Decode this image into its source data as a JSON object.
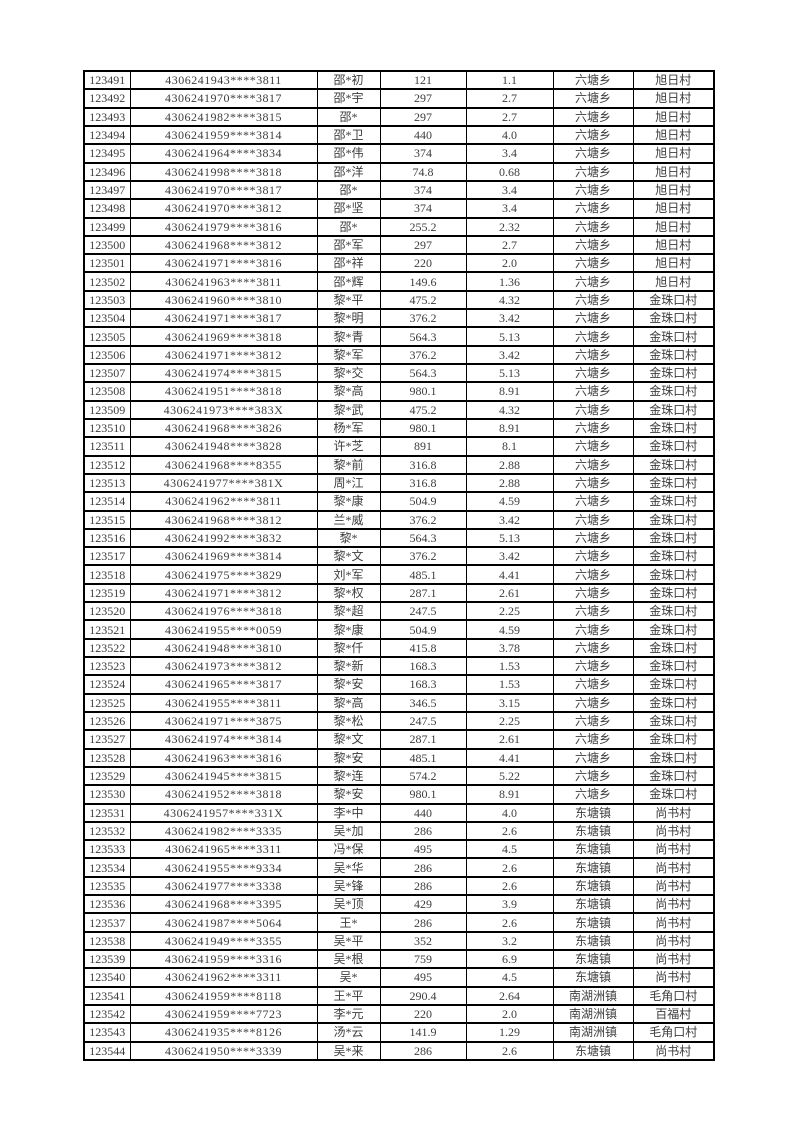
{
  "page": {
    "background_color": "#ffffff",
    "text_color": "#3d3d3d",
    "border_color": "#000000"
  },
  "table": {
    "rows": [
      [
        "123491",
        "4306241943****3811",
        "邵*初",
        "121",
        "1.1",
        "六塘乡",
        "旭日村"
      ],
      [
        "123492",
        "4306241970****3817",
        "邵*宇",
        "297",
        "2.7",
        "六塘乡",
        "旭日村"
      ],
      [
        "123493",
        "4306241982****3815",
        "邵*",
        "297",
        "2.7",
        "六塘乡",
        "旭日村"
      ],
      [
        "123494",
        "4306241959****3814",
        "邵*卫",
        "440",
        "4.0",
        "六塘乡",
        "旭日村"
      ],
      [
        "123495",
        "4306241964****3834",
        "邵*伟",
        "374",
        "3.4",
        "六塘乡",
        "旭日村"
      ],
      [
        "123496",
        "4306241998****3818",
        "邵*洋",
        "74.8",
        "0.68",
        "六塘乡",
        "旭日村"
      ],
      [
        "123497",
        "4306241970****3817",
        "邵*",
        "374",
        "3.4",
        "六塘乡",
        "旭日村"
      ],
      [
        "123498",
        "4306241970****3812",
        "邵*坚",
        "374",
        "3.4",
        "六塘乡",
        "旭日村"
      ],
      [
        "123499",
        "4306241979****3816",
        "邵*",
        "255.2",
        "2.32",
        "六塘乡",
        "旭日村"
      ],
      [
        "123500",
        "4306241968****3812",
        "邵*军",
        "297",
        "2.7",
        "六塘乡",
        "旭日村"
      ],
      [
        "123501",
        "4306241971****3816",
        "邵*祥",
        "220",
        "2.0",
        "六塘乡",
        "旭日村"
      ],
      [
        "123502",
        "4306241963****3811",
        "邵*辉",
        "149.6",
        "1.36",
        "六塘乡",
        "旭日村"
      ],
      [
        "123503",
        "4306241960****3810",
        "黎*平",
        "475.2",
        "4.32",
        "六塘乡",
        "金珠口村"
      ],
      [
        "123504",
        "4306241971****3817",
        "黎*明",
        "376.2",
        "3.42",
        "六塘乡",
        "金珠口村"
      ],
      [
        "123505",
        "4306241969****3818",
        "黎*青",
        "564.3",
        "5.13",
        "六塘乡",
        "金珠口村"
      ],
      [
        "123506",
        "4306241971****3812",
        "黎*军",
        "376.2",
        "3.42",
        "六塘乡",
        "金珠口村"
      ],
      [
        "123507",
        "4306241974****3815",
        "黎*交",
        "564.3",
        "5.13",
        "六塘乡",
        "金珠口村"
      ],
      [
        "123508",
        "4306241951****3818",
        "黎*高",
        "980.1",
        "8.91",
        "六塘乡",
        "金珠口村"
      ],
      [
        "123509",
        "4306241973****383X",
        "黎*武",
        "475.2",
        "4.32",
        "六塘乡",
        "金珠口村"
      ],
      [
        "123510",
        "4306241968****3826",
        "杨*军",
        "980.1",
        "8.91",
        "六塘乡",
        "金珠口村"
      ],
      [
        "123511",
        "4306241948****3828",
        "许*芝",
        "891",
        "8.1",
        "六塘乡",
        "金珠口村"
      ],
      [
        "123512",
        "4306241968****8355",
        "黎*前",
        "316.8",
        "2.88",
        "六塘乡",
        "金珠口村"
      ],
      [
        "123513",
        "4306241977****381X",
        "周*江",
        "316.8",
        "2.88",
        "六塘乡",
        "金珠口村"
      ],
      [
        "123514",
        "4306241962****3811",
        "黎*康",
        "504.9",
        "4.59",
        "六塘乡",
        "金珠口村"
      ],
      [
        "123515",
        "4306241968****3812",
        "兰*威",
        "376.2",
        "3.42",
        "六塘乡",
        "金珠口村"
      ],
      [
        "123516",
        "4306241992****3832",
        "黎*",
        "564.3",
        "5.13",
        "六塘乡",
        "金珠口村"
      ],
      [
        "123517",
        "4306241969****3814",
        "黎*文",
        "376.2",
        "3.42",
        "六塘乡",
        "金珠口村"
      ],
      [
        "123518",
        "4306241975****3829",
        "刘*军",
        "485.1",
        "4.41",
        "六塘乡",
        "金珠口村"
      ],
      [
        "123519",
        "4306241971****3812",
        "黎*权",
        "287.1",
        "2.61",
        "六塘乡",
        "金珠口村"
      ],
      [
        "123520",
        "4306241976****3818",
        "黎*超",
        "247.5",
        "2.25",
        "六塘乡",
        "金珠口村"
      ],
      [
        "123521",
        "4306241955****0059",
        "黎*康",
        "504.9",
        "4.59",
        "六塘乡",
        "金珠口村"
      ],
      [
        "123522",
        "4306241948****3810",
        "黎*仟",
        "415.8",
        "3.78",
        "六塘乡",
        "金珠口村"
      ],
      [
        "123523",
        "4306241973****3812",
        "黎*新",
        "168.3",
        "1.53",
        "六塘乡",
        "金珠口村"
      ],
      [
        "123524",
        "4306241965****3817",
        "黎*安",
        "168.3",
        "1.53",
        "六塘乡",
        "金珠口村"
      ],
      [
        "123525",
        "4306241955****3811",
        "黎*高",
        "346.5",
        "3.15",
        "六塘乡",
        "金珠口村"
      ],
      [
        "123526",
        "4306241971****3875",
        "黎*松",
        "247.5",
        "2.25",
        "六塘乡",
        "金珠口村"
      ],
      [
        "123527",
        "4306241974****3814",
        "黎*文",
        "287.1",
        "2.61",
        "六塘乡",
        "金珠口村"
      ],
      [
        "123528",
        "4306241963****3816",
        "黎*安",
        "485.1",
        "4.41",
        "六塘乡",
        "金珠口村"
      ],
      [
        "123529",
        "4306241945****3815",
        "黎*连",
        "574.2",
        "5.22",
        "六塘乡",
        "金珠口村"
      ],
      [
        "123530",
        "4306241952****3818",
        "黎*安",
        "980.1",
        "8.91",
        "六塘乡",
        "金珠口村"
      ],
      [
        "123531",
        "4306241957****331X",
        "李*中",
        "440",
        "4.0",
        "东塘镇",
        "尚书村"
      ],
      [
        "123532",
        "4306241982****3335",
        "吴*加",
        "286",
        "2.6",
        "东塘镇",
        "尚书村"
      ],
      [
        "123533",
        "4306241965****3311",
        "冯*保",
        "495",
        "4.5",
        "东塘镇",
        "尚书村"
      ],
      [
        "123534",
        "4306241955****9334",
        "吴*华",
        "286",
        "2.6",
        "东塘镇",
        "尚书村"
      ],
      [
        "123535",
        "4306241977****3338",
        "吴*锋",
        "286",
        "2.6",
        "东塘镇",
        "尚书村"
      ],
      [
        "123536",
        "4306241968****3395",
        "吴*顶",
        "429",
        "3.9",
        "东塘镇",
        "尚书村"
      ],
      [
        "123537",
        "4306241987****5064",
        "王*",
        "286",
        "2.6",
        "东塘镇",
        "尚书村"
      ],
      [
        "123538",
        "4306241949****3355",
        "吴*平",
        "352",
        "3.2",
        "东塘镇",
        "尚书村"
      ],
      [
        "123539",
        "4306241959****3316",
        "吴*根",
        "759",
        "6.9",
        "东塘镇",
        "尚书村"
      ],
      [
        "123540",
        "4306241962****3311",
        "吴*",
        "495",
        "4.5",
        "东塘镇",
        "尚书村"
      ],
      [
        "123541",
        "4306241959****8118",
        "王*平",
        "290.4",
        "2.64",
        "南湖洲镇",
        "毛角口村"
      ],
      [
        "123542",
        "4306241959****7723",
        "李*元",
        "220",
        "2.0",
        "南湖洲镇",
        "百福村"
      ],
      [
        "123543",
        "4306241935****8126",
        "汤*云",
        "141.9",
        "1.29",
        "南湖洲镇",
        "毛角口村"
      ],
      [
        "123544",
        "4306241950****3339",
        "吴*来",
        "286",
        "2.6",
        "东塘镇",
        "尚书村"
      ]
    ]
  }
}
